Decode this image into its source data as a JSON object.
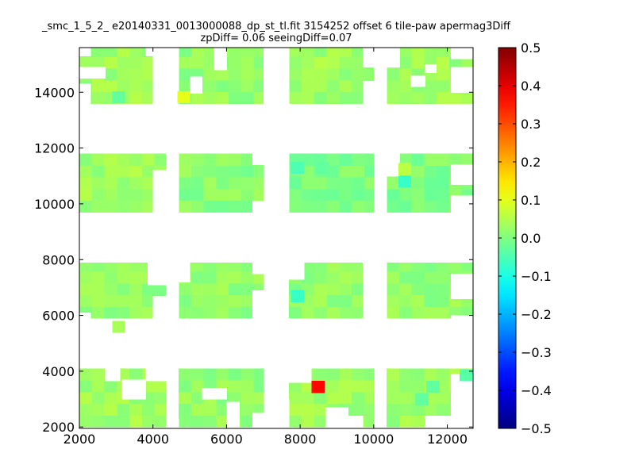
{
  "chart_data": {
    "type": "heatmap",
    "title_line1": "_smc_1_5_2_ e20140331_0013000088_dp_st_tl.fit 3154252 offset 6 tile-paw apermag3Diff",
    "title_line2": "zpDiff= 0.06 seeingDiff=0.07",
    "xlabel": "",
    "ylabel": "",
    "xlim": [
      2000,
      12700
    ],
    "ylim": [
      1950,
      15600
    ],
    "xticks": [
      2000,
      4000,
      6000,
      8000,
      10000,
      12000
    ],
    "yticks": [
      2000,
      4000,
      6000,
      8000,
      10000,
      12000,
      14000
    ],
    "colorbar": {
      "min": -0.5,
      "max": 0.5,
      "ticks": [
        "0.5",
        "0.4",
        "0.3",
        "0.2",
        "0.1",
        "0.0",
        "−0.1",
        "−0.2",
        "−0.3",
        "−0.4",
        "−0.5"
      ],
      "colormap": "jet"
    },
    "grid": false,
    "cell_size": [
      340,
      420
    ],
    "y_bands": [
      {
        "name": "band-1",
        "range": [
          2000,
          4100
        ]
      },
      {
        "name": "band-2",
        "range": [
          5900,
          7900
        ]
      },
      {
        "name": "band-3",
        "range": [
          9700,
          11800
        ]
      },
      {
        "name": "band-4",
        "range": [
          13600,
          15600
        ]
      }
    ],
    "x_columns": [
      {
        "name": "col-1",
        "range": [
          2000,
          4350
        ]
      },
      {
        "name": "col-2",
        "range": [
          4700,
          7000
        ]
      },
      {
        "name": "col-3",
        "range": [
          7700,
          10000
        ]
      },
      {
        "name": "col-4",
        "range": [
          10350,
          12700
        ]
      }
    ],
    "base_values": [
      [
        0.03,
        0.02,
        0.03
      ],
      [
        0.02,
        0.02,
        0.02
      ],
      [
        0.03,
        0.01,
        0.0
      ],
      [
        0.03,
        0.02,
        0.03
      ]
    ],
    "highlights": [
      {
        "x": 4830,
        "y": 13830,
        "value": 0.1
      },
      {
        "x": 3060,
        "y": 13830,
        "value": -0.03
      },
      {
        "x": 7920,
        "y": 11300,
        "value": -0.05
      },
      {
        "x": 8600,
        "y": 11300,
        "value": -0.03
      },
      {
        "x": 7920,
        "y": 6700,
        "value": -0.07
      },
      {
        "x": 10840,
        "y": 10800,
        "value": -0.07
      },
      {
        "x": 10840,
        "y": 11250,
        "value": 0.06
      },
      {
        "x": 8480,
        "y": 3440,
        "value": 0.37
      },
      {
        "x": 12500,
        "y": 3860,
        "value": -0.04
      },
      {
        "x": 11300,
        "y": 3000,
        "value": -0.03
      },
      {
        "x": 11600,
        "y": 3450,
        "value": -0.03
      },
      {
        "x": 3060,
        "y": 5600,
        "value": 0.04
      }
    ],
    "holes": [
      [
        4350,
        2000,
        4700,
        2300
      ],
      [
        3150,
        3000,
        3800,
        3700
      ],
      [
        3800,
        3650,
        4350,
        4100
      ],
      [
        2700,
        3650,
        3100,
        4100
      ],
      [
        5330,
        3000,
        5670,
        3400
      ],
      [
        5670,
        3000,
        6000,
        3400
      ],
      [
        6000,
        2000,
        6350,
        2900
      ],
      [
        6700,
        2000,
        7000,
        2500
      ],
      [
        7350,
        2000,
        7700,
        3000
      ],
      [
        7700,
        3600,
        8300,
        4100
      ],
      [
        8700,
        2000,
        9300,
        2700
      ],
      [
        9300,
        2000,
        9700,
        2400
      ],
      [
        12100,
        2000,
        12700,
        3900
      ],
      [
        11400,
        2000,
        12100,
        2400
      ],
      [
        4350,
        5900,
        4700,
        7900
      ],
      [
        2000,
        5900,
        2300,
        6100
      ],
      [
        4000,
        5900,
        4350,
        6700
      ],
      [
        3850,
        7100,
        4350,
        7900
      ],
      [
        4700,
        7200,
        5000,
        7900
      ],
      [
        6700,
        5900,
        7000,
        6900
      ],
      [
        6700,
        7500,
        7000,
        7900
      ],
      [
        7700,
        7300,
        8100,
        7900
      ],
      [
        9700,
        5900,
        10000,
        7900
      ],
      [
        10000,
        5900,
        10350,
        7900
      ],
      [
        12100,
        6600,
        12700,
        7500
      ],
      [
        12100,
        5900,
        12700,
        6000
      ],
      [
        4000,
        9700,
        4350,
        11200
      ],
      [
        4350,
        9700,
        4700,
        11800
      ],
      [
        6700,
        9700,
        7000,
        10100
      ],
      [
        6700,
        11400,
        7000,
        11800
      ],
      [
        7350,
        9700,
        7700,
        11800
      ],
      [
        10000,
        9700,
        10350,
        11800
      ],
      [
        10350,
        11000,
        10700,
        11800
      ],
      [
        12100,
        9700,
        12700,
        10300
      ],
      [
        12100,
        10700,
        12700,
        11400
      ],
      [
        2000,
        15300,
        2300,
        15600
      ],
      [
        3800,
        15300,
        4000,
        15600
      ],
      [
        2000,
        14500,
        2700,
        14900
      ],
      [
        2000,
        13600,
        2300,
        14300
      ],
      [
        4000,
        13600,
        4700,
        15600
      ],
      [
        5660,
        14800,
        6000,
        15600
      ],
      [
        5000,
        13960,
        5330,
        14560
      ],
      [
        7000,
        13600,
        7700,
        15600
      ],
      [
        9700,
        14900,
        10000,
        15600
      ],
      [
        10000,
        13600,
        10350,
        15600
      ],
      [
        9700,
        13600,
        10000,
        14400
      ],
      [
        10350,
        14900,
        10700,
        15600
      ],
      [
        11000,
        14200,
        11400,
        14600
      ],
      [
        11400,
        14700,
        11700,
        15000
      ],
      [
        12100,
        14000,
        12700,
        14900
      ],
      [
        12100,
        15200,
        12700,
        15600
      ]
    ]
  }
}
